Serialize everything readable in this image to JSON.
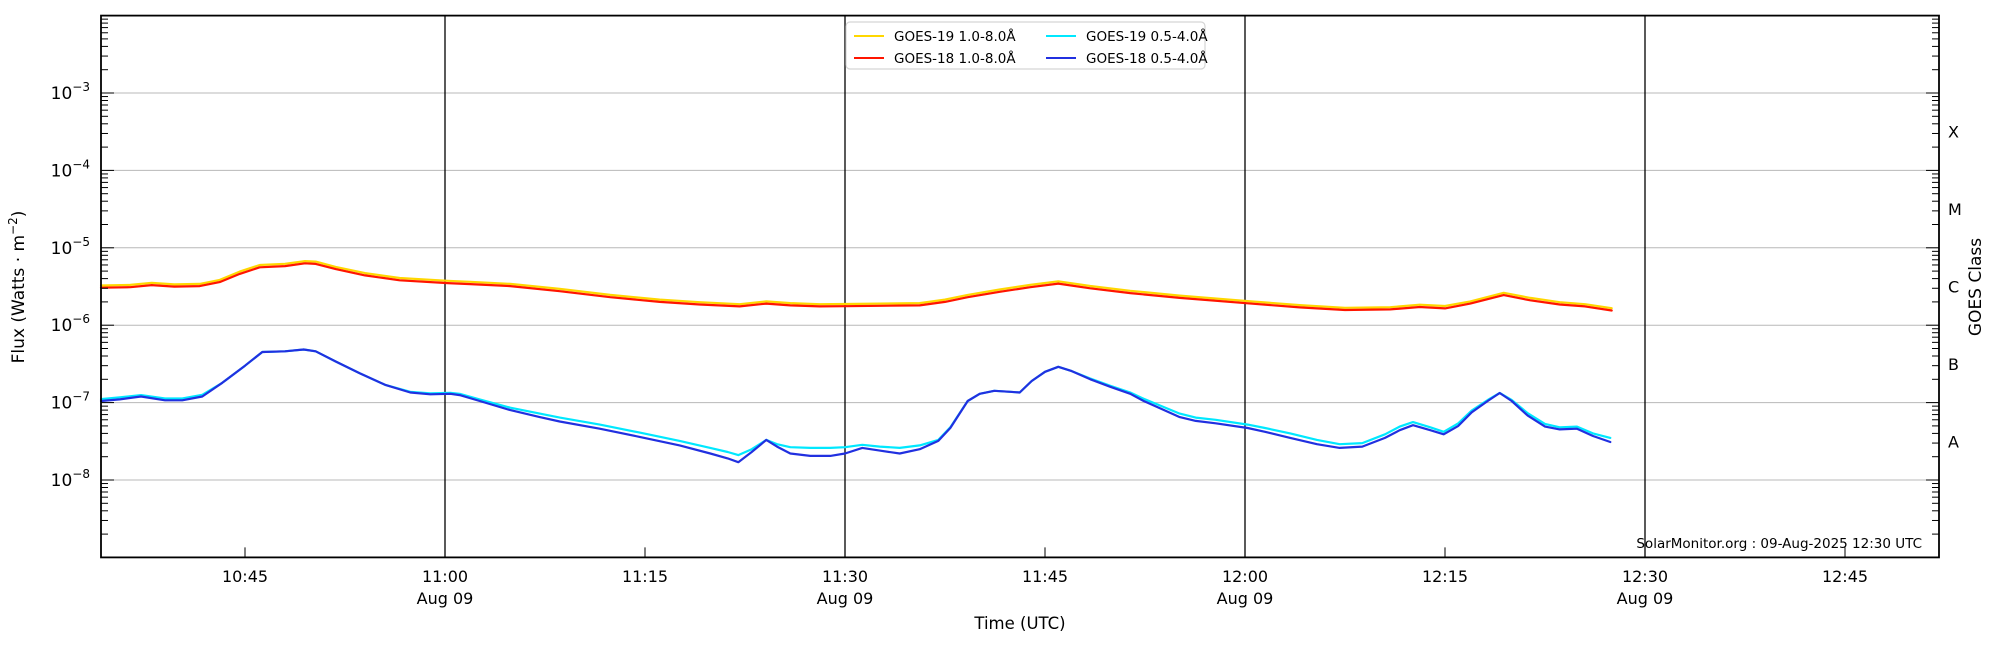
{
  "chart_data": {
    "type": "line",
    "title": "",
    "xlabel": "Time (UTC)",
    "ylabel_prefix": "Flux (Watts · m",
    "ylabel_sup": "−2",
    "ylabel_suffix": ")",
    "ylabel_right": "GOES Class",
    "attribution": "SolarMonitor.org : 09-Aug-2025 12:30 UTC",
    "grid_color": "#b8b8b8",
    "axis_color": "#000000",
    "x_axis": {
      "units": "minutes after 10:00 UTC",
      "range": [
        34.2,
        172.05
      ],
      "ticks": [
        {
          "t": 45,
          "label": "10:45",
          "sub": ""
        },
        {
          "t": 60,
          "label": "11:00",
          "sub": "Aug 09"
        },
        {
          "t": 75,
          "label": "11:15",
          "sub": ""
        },
        {
          "t": 90,
          "label": "11:30",
          "sub": "Aug 09"
        },
        {
          "t": 105,
          "label": "11:45",
          "sub": ""
        },
        {
          "t": 120,
          "label": "12:00",
          "sub": "Aug 09"
        },
        {
          "t": 135,
          "label": "12:15",
          "sub": ""
        },
        {
          "t": 150,
          "label": "12:30",
          "sub": "Aug 09"
        },
        {
          "t": 165,
          "label": "12:45",
          "sub": ""
        }
      ],
      "day_lines": [
        60,
        90,
        120,
        150
      ]
    },
    "y_axis": {
      "scale": "log",
      "range_exponents": [
        -9,
        -2
      ],
      "tick_exponents": [
        -3,
        -4,
        -5,
        -6,
        -7,
        -8
      ]
    },
    "goes_classes": [
      {
        "label": "X",
        "log_center": -3.5
      },
      {
        "label": "M",
        "log_center": -4.5
      },
      {
        "label": "C",
        "log_center": -5.5
      },
      {
        "label": "B",
        "log_center": -6.5
      },
      {
        "label": "A",
        "log_center": -7.5
      }
    ],
    "legend": {
      "position": "top-center",
      "entries": [
        {
          "label": "GOES-19 1.0-8.0Å",
          "color": "#ffd700",
          "series": "goes19-long"
        },
        {
          "label": "GOES-18 1.0-8.0Å",
          "color": "#ff1500",
          "series": "goes18-long"
        },
        {
          "label": "GOES-19 0.5-4.0Å",
          "color": "#00e8ff",
          "series": "goes19-short"
        },
        {
          "label": "GOES-18 0.5-4.0Å",
          "color": "#2130e0",
          "series": "goes18-short"
        }
      ]
    },
    "series": [
      {
        "id": "goes19-long",
        "name": "GOES-19 1.0-8.0Å",
        "color": "#ffd700",
        "z": 1,
        "points": [
          [
            34.2,
            3.26e-06
          ],
          [
            36.4,
            3.32e-06
          ],
          [
            38,
            3.53e-06
          ],
          [
            39.7,
            3.37e-06
          ],
          [
            41.6,
            3.42e-06
          ],
          [
            43.1,
            3.85e-06
          ],
          [
            44.6,
            4.92e-06
          ],
          [
            46.1,
            5.99e-06
          ],
          [
            48,
            6.21e-06
          ],
          [
            49.5,
            6.74e-06
          ],
          [
            50.3,
            6.63e-06
          ],
          [
            51.8,
            5.67e-06
          ],
          [
            54,
            4.71e-06
          ],
          [
            56.6,
            4.07e-06
          ],
          [
            60.2,
            3.75e-06
          ],
          [
            61.9,
            3.64e-06
          ],
          [
            64.9,
            3.42e-06
          ],
          [
            68.6,
            2.94e-06
          ],
          [
            72.4,
            2.46e-06
          ],
          [
            76.1,
            2.14e-06
          ],
          [
            79.1,
            1.98e-06
          ],
          [
            82.1,
            1.87e-06
          ],
          [
            84.1,
            2.03e-06
          ],
          [
            85.9,
            1.93e-06
          ],
          [
            88.1,
            1.87e-06
          ],
          [
            90,
            1.88e-06
          ],
          [
            92.6,
            1.9e-06
          ],
          [
            95.6,
            1.93e-06
          ],
          [
            97.5,
            2.14e-06
          ],
          [
            99.2,
            2.46e-06
          ],
          [
            101.6,
            2.89e-06
          ],
          [
            103.9,
            3.32e-06
          ],
          [
            106,
            3.69e-06
          ],
          [
            108.4,
            3.21e-06
          ],
          [
            111.4,
            2.78e-06
          ],
          [
            115.1,
            2.41e-06
          ],
          [
            120.2,
            2.05e-06
          ],
          [
            124.1,
            1.82e-06
          ],
          [
            127.5,
            1.68e-06
          ],
          [
            130.9,
            1.71e-06
          ],
          [
            133.1,
            1.84e-06
          ],
          [
            135,
            1.77e-06
          ],
          [
            136.9,
            2.03e-06
          ],
          [
            139.4,
            2.62e-06
          ],
          [
            141.4,
            2.25e-06
          ],
          [
            143.6,
            1.98e-06
          ],
          [
            145.5,
            1.87e-06
          ],
          [
            147.5,
            1.66e-06
          ]
        ]
      },
      {
        "id": "goes19-short",
        "name": "GOES-19 0.5-4.0Å",
        "color": "#00e8ff",
        "z": 2,
        "points": [
          [
            34.2,
            1.11e-07
          ],
          [
            35.6,
            1.17e-07
          ],
          [
            37.2,
            1.25e-07
          ],
          [
            39,
            1.13e-07
          ],
          [
            40.3,
            1.13e-07
          ],
          [
            41.8,
            1.26e-07
          ],
          [
            43.3,
            1.8e-07
          ],
          [
            45,
            3e-07
          ],
          [
            46.3,
            4.5e-07
          ],
          [
            48,
            4.6e-07
          ],
          [
            49.4,
            4.85e-07
          ],
          [
            50.3,
            4.6e-07
          ],
          [
            51.8,
            3.4e-07
          ],
          [
            53.6,
            2.4e-07
          ],
          [
            55.5,
            1.7e-07
          ],
          [
            57.4,
            1.38e-07
          ],
          [
            58.9,
            1.32e-07
          ],
          [
            60.4,
            1.34e-07
          ],
          [
            61.1,
            1.3e-07
          ],
          [
            62.6,
            1.1e-07
          ],
          [
            64.9,
            8.6e-08
          ],
          [
            67.1,
            7.2e-08
          ],
          [
            68.6,
            6.4e-08
          ],
          [
            71.6,
            5.2e-08
          ],
          [
            74.6,
            4.1e-08
          ],
          [
            77.6,
            3.2e-08
          ],
          [
            79.9,
            2.6e-08
          ],
          [
            81.2,
            2.3e-08
          ],
          [
            82,
            2.1e-08
          ],
          [
            83,
            2.5e-08
          ],
          [
            84.1,
            3.3e-08
          ],
          [
            84.9,
            2.9e-08
          ],
          [
            85.9,
            2.65e-08
          ],
          [
            87.4,
            2.6e-08
          ],
          [
            88.9,
            2.6e-08
          ],
          [
            90,
            2.65e-08
          ],
          [
            91.3,
            2.85e-08
          ],
          [
            92.6,
            2.7e-08
          ],
          [
            94.1,
            2.6e-08
          ],
          [
            95.6,
            2.8e-08
          ],
          [
            97,
            3.3e-08
          ],
          [
            97.9,
            4.8e-08
          ],
          [
            99.2,
            1.05e-07
          ],
          [
            100.1,
            1.3e-07
          ],
          [
            101.2,
            1.42e-07
          ],
          [
            102.4,
            1.38e-07
          ],
          [
            103.1,
            1.35e-07
          ],
          [
            104,
            1.9e-07
          ],
          [
            105,
            2.5e-07
          ],
          [
            106,
            2.9e-07
          ],
          [
            107,
            2.55e-07
          ],
          [
            108.4,
            2.05e-07
          ],
          [
            109.9,
            1.65e-07
          ],
          [
            111.4,
            1.35e-07
          ],
          [
            112.4,
            1.12e-07
          ],
          [
            113.6,
            9.2e-08
          ],
          [
            115.1,
            7.2e-08
          ],
          [
            116.3,
            6.4e-08
          ],
          [
            117.8,
            6e-08
          ],
          [
            120.2,
            5.2e-08
          ],
          [
            121.5,
            4.7e-08
          ],
          [
            123.4,
            4e-08
          ],
          [
            125.4,
            3.3e-08
          ],
          [
            127.1,
            2.9e-08
          ],
          [
            128.8,
            3e-08
          ],
          [
            130.5,
            3.9e-08
          ],
          [
            131.6,
            4.9e-08
          ],
          [
            132.6,
            5.6e-08
          ],
          [
            133.9,
            4.8e-08
          ],
          [
            134.9,
            4.2e-08
          ],
          [
            136,
            5.4e-08
          ],
          [
            137,
            7.9e-08
          ],
          [
            138.2,
            1.08e-07
          ],
          [
            139.1,
            1.33e-07
          ],
          [
            140,
            1.08e-07
          ],
          [
            141.2,
            7.3e-08
          ],
          [
            142.5,
            5.3e-08
          ],
          [
            143.6,
            4.8e-08
          ],
          [
            144.9,
            4.9e-08
          ],
          [
            146.1,
            4e-08
          ],
          [
            147.4,
            3.5e-08
          ]
        ]
      },
      {
        "id": "goes18-long",
        "name": "GOES-18 1.0-8.0Å",
        "color": "#ff1500",
        "z": 3,
        "points": [
          [
            34.2,
            3.05e-06
          ],
          [
            36.4,
            3.1e-06
          ],
          [
            38,
            3.3e-06
          ],
          [
            39.7,
            3.15e-06
          ],
          [
            41.6,
            3.2e-06
          ],
          [
            43.1,
            3.6e-06
          ],
          [
            44.6,
            4.6e-06
          ],
          [
            46.1,
            5.6e-06
          ],
          [
            48,
            5.8e-06
          ],
          [
            49.5,
            6.3e-06
          ],
          [
            50.3,
            6.2e-06
          ],
          [
            51.8,
            5.3e-06
          ],
          [
            54,
            4.4e-06
          ],
          [
            56.6,
            3.8e-06
          ],
          [
            60.2,
            3.5e-06
          ],
          [
            61.9,
            3.4e-06
          ],
          [
            64.9,
            3.2e-06
          ],
          [
            68.6,
            2.75e-06
          ],
          [
            72.4,
            2.3e-06
          ],
          [
            76.1,
            2e-06
          ],
          [
            79.1,
            1.85e-06
          ],
          [
            82.1,
            1.75e-06
          ],
          [
            84.1,
            1.9e-06
          ],
          [
            85.9,
            1.8e-06
          ],
          [
            88.1,
            1.75e-06
          ],
          [
            90,
            1.76e-06
          ],
          [
            92.6,
            1.78e-06
          ],
          [
            95.6,
            1.8e-06
          ],
          [
            97.5,
            2e-06
          ],
          [
            99.2,
            2.3e-06
          ],
          [
            101.6,
            2.7e-06
          ],
          [
            103.9,
            3.1e-06
          ],
          [
            106,
            3.45e-06
          ],
          [
            108.4,
            3e-06
          ],
          [
            111.4,
            2.6e-06
          ],
          [
            115.1,
            2.25e-06
          ],
          [
            120.2,
            1.92e-06
          ],
          [
            124.1,
            1.7e-06
          ],
          [
            127.5,
            1.57e-06
          ],
          [
            130.9,
            1.6e-06
          ],
          [
            133.1,
            1.72e-06
          ],
          [
            135,
            1.65e-06
          ],
          [
            136.9,
            1.9e-06
          ],
          [
            139.4,
            2.45e-06
          ],
          [
            141.4,
            2.1e-06
          ],
          [
            143.6,
            1.85e-06
          ],
          [
            145.5,
            1.75e-06
          ],
          [
            147.5,
            1.55e-06
          ]
        ]
      },
      {
        "id": "goes18-short",
        "name": "GOES-18 0.5-4.0Å",
        "color": "#2130e0",
        "z": 4,
        "points": [
          [
            34.2,
            1.05e-07
          ],
          [
            35.6,
            1.1e-07
          ],
          [
            37.2,
            1.2e-07
          ],
          [
            39,
            1.07e-07
          ],
          [
            40.3,
            1.07e-07
          ],
          [
            41.8,
            1.2e-07
          ],
          [
            43.3,
            1.8e-07
          ],
          [
            45,
            3e-07
          ],
          [
            46.3,
            4.5e-07
          ],
          [
            48,
            4.6e-07
          ],
          [
            49.4,
            4.85e-07
          ],
          [
            50.3,
            4.6e-07
          ],
          [
            51.8,
            3.4e-07
          ],
          [
            53.6,
            2.4e-07
          ],
          [
            55.5,
            1.7e-07
          ],
          [
            57.4,
            1.35e-07
          ],
          [
            58.9,
            1.28e-07
          ],
          [
            60.4,
            1.3e-07
          ],
          [
            61.1,
            1.25e-07
          ],
          [
            62.6,
            1.05e-07
          ],
          [
            64.9,
            8e-08
          ],
          [
            67.1,
            6.5e-08
          ],
          [
            68.6,
            5.7e-08
          ],
          [
            71.6,
            4.6e-08
          ],
          [
            74.6,
            3.6e-08
          ],
          [
            77.6,
            2.8e-08
          ],
          [
            79.9,
            2.2e-08
          ],
          [
            81.2,
            1.9e-08
          ],
          [
            82,
            1.7e-08
          ],
          [
            83,
            2.3e-08
          ],
          [
            84.1,
            3.3e-08
          ],
          [
            84.9,
            2.7e-08
          ],
          [
            85.9,
            2.2e-08
          ],
          [
            87.4,
            2.05e-08
          ],
          [
            88.9,
            2.05e-08
          ],
          [
            90,
            2.2e-08
          ],
          [
            91.3,
            2.6e-08
          ],
          [
            92.6,
            2.4e-08
          ],
          [
            94.1,
            2.2e-08
          ],
          [
            95.6,
            2.5e-08
          ],
          [
            97,
            3.2e-08
          ],
          [
            97.9,
            4.7e-08
          ],
          [
            99.2,
            1.05e-07
          ],
          [
            100.1,
            1.3e-07
          ],
          [
            101.2,
            1.42e-07
          ],
          [
            102.4,
            1.38e-07
          ],
          [
            103.1,
            1.35e-07
          ],
          [
            104,
            1.9e-07
          ],
          [
            105,
            2.5e-07
          ],
          [
            106,
            2.9e-07
          ],
          [
            107,
            2.55e-07
          ],
          [
            108.4,
            2e-07
          ],
          [
            109.9,
            1.6e-07
          ],
          [
            111.4,
            1.3e-07
          ],
          [
            112.4,
            1.05e-07
          ],
          [
            113.6,
            8.5e-08
          ],
          [
            115.1,
            6.5e-08
          ],
          [
            116.3,
            5.8e-08
          ],
          [
            117.8,
            5.4e-08
          ],
          [
            120.2,
            4.7e-08
          ],
          [
            121.5,
            4.2e-08
          ],
          [
            123.4,
            3.5e-08
          ],
          [
            125.4,
            2.9e-08
          ],
          [
            127.1,
            2.6e-08
          ],
          [
            128.8,
            2.7e-08
          ],
          [
            130.5,
            3.5e-08
          ],
          [
            131.6,
            4.4e-08
          ],
          [
            132.6,
            5.1e-08
          ],
          [
            133.9,
            4.4e-08
          ],
          [
            134.9,
            3.9e-08
          ],
          [
            136,
            5e-08
          ],
          [
            137,
            7.5e-08
          ],
          [
            138.2,
            1.05e-07
          ],
          [
            139.1,
            1.33e-07
          ],
          [
            140,
            1.05e-07
          ],
          [
            141.2,
            6.8e-08
          ],
          [
            142.5,
            4.9e-08
          ],
          [
            143.6,
            4.5e-08
          ],
          [
            144.9,
            4.6e-08
          ],
          [
            146.1,
            3.7e-08
          ],
          [
            147.4,
            3.1e-08
          ]
        ]
      }
    ]
  }
}
